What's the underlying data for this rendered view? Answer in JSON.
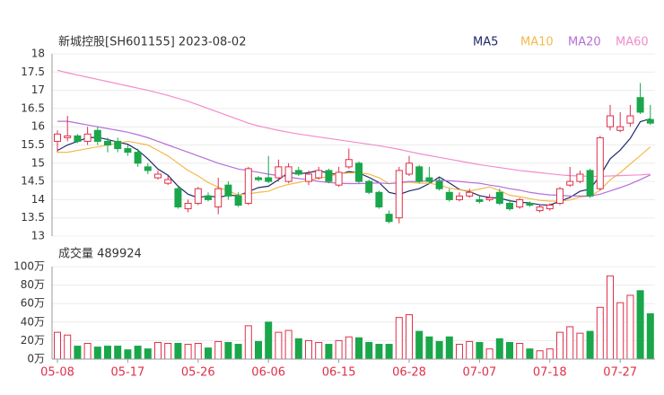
{
  "chart_data": [
    {
      "type": "candlestick",
      "title": "新城控股[SH601155] 2023-08-02",
      "categories": [
        "05-08",
        null,
        null,
        null,
        null,
        null,
        null,
        "05-17",
        null,
        null,
        null,
        null,
        null,
        null,
        "05-26",
        null,
        null,
        null,
        null,
        null,
        null,
        "06-06",
        null,
        null,
        null,
        null,
        null,
        null,
        "06-15",
        null,
        null,
        null,
        null,
        null,
        null,
        "06-28",
        null,
        null,
        null,
        null,
        null,
        null,
        "07-07",
        null,
        null,
        null,
        null,
        null,
        null,
        "07-18",
        null,
        null,
        null,
        null,
        null,
        null,
        "07-27",
        null,
        null,
        null
      ],
      "open": [
        15.6,
        15.7,
        15.75,
        15.6,
        15.9,
        15.6,
        15.6,
        15.4,
        15.3,
        14.9,
        14.6,
        14.45,
        14.3,
        13.75,
        13.9,
        14.1,
        13.8,
        14.4,
        14.1,
        13.9,
        14.6,
        14.6,
        14.6,
        14.5,
        14.8,
        14.5,
        14.6,
        14.8,
        14.4,
        14.9,
        15.0,
        14.5,
        14.2,
        13.6,
        13.5,
        14.7,
        14.9,
        14.6,
        14.5,
        14.2,
        14.0,
        14.1,
        14.0,
        14.0,
        14.2,
        13.9,
        13.8,
        13.9,
        13.7,
        13.75,
        13.9,
        14.4,
        14.5,
        14.8,
        14.3,
        16.0,
        15.9,
        16.1,
        16.8,
        16.2
      ],
      "high": [
        15.9,
        16.3,
        15.8,
        16.0,
        16.0,
        15.7,
        15.7,
        15.5,
        15.4,
        15.0,
        14.8,
        14.65,
        14.4,
        14.0,
        14.35,
        14.2,
        14.6,
        14.5,
        14.2,
        14.9,
        14.65,
        15.2,
        15.1,
        15.0,
        14.9,
        14.8,
        14.9,
        14.85,
        14.9,
        15.4,
        15.05,
        14.55,
        14.25,
        13.7,
        14.9,
        15.2,
        14.95,
        14.9,
        14.6,
        14.3,
        14.2,
        14.3,
        14.1,
        14.15,
        14.3,
        14.0,
        14.05,
        13.95,
        13.85,
        13.9,
        14.35,
        14.9,
        14.8,
        14.85,
        15.75,
        16.6,
        16.4,
        16.6,
        17.2,
        16.6
      ],
      "low": [
        15.3,
        15.6,
        15.55,
        15.5,
        15.5,
        15.3,
        15.3,
        15.2,
        14.9,
        14.7,
        14.55,
        14.4,
        13.75,
        13.65,
        13.85,
        13.95,
        13.6,
        14.0,
        13.8,
        13.85,
        14.5,
        14.45,
        14.5,
        14.45,
        14.65,
        14.4,
        14.55,
        14.45,
        14.35,
        14.85,
        14.45,
        14.15,
        13.75,
        13.35,
        13.35,
        14.65,
        14.45,
        14.45,
        14.25,
        13.95,
        13.95,
        14.05,
        13.9,
        13.95,
        13.85,
        13.7,
        13.75,
        13.8,
        13.65,
        13.7,
        13.85,
        14.35,
        14.45,
        14.05,
        14.25,
        15.9,
        15.85,
        16.0,
        16.35,
        16.05
      ],
      "close": [
        15.8,
        15.75,
        15.6,
        15.8,
        15.6,
        15.5,
        15.4,
        15.3,
        15.0,
        14.8,
        14.7,
        14.55,
        13.8,
        13.9,
        14.3,
        14.0,
        14.3,
        14.1,
        13.85,
        14.85,
        14.55,
        14.5,
        14.9,
        14.9,
        14.7,
        14.7,
        14.8,
        14.5,
        14.75,
        15.1,
        14.5,
        14.2,
        13.8,
        13.4,
        14.8,
        15.0,
        14.5,
        14.5,
        14.3,
        14.0,
        14.1,
        14.2,
        13.95,
        14.05,
        13.9,
        13.75,
        14.0,
        13.85,
        13.8,
        13.85,
        14.3,
        14.5,
        14.7,
        14.1,
        15.7,
        16.3,
        16.0,
        16.3,
        16.4,
        16.1
      ],
      "up_color": "#e0304a",
      "down_color": "#1aa64a",
      "series": [
        {
          "name": "MA5",
          "color": "#1f2a6b",
          "values": [
            15.35,
            15.5,
            15.6,
            15.7,
            15.71,
            15.65,
            15.58,
            15.52,
            15.36,
            15.12,
            14.84,
            14.67,
            14.37,
            14.15,
            14.05,
            14.11,
            14.06,
            14.12,
            14.11,
            14.22,
            14.33,
            14.37,
            14.55,
            14.74,
            14.71,
            14.74,
            14.8,
            14.72,
            14.69,
            14.77,
            14.73,
            14.61,
            14.47,
            14.2,
            14.14,
            14.24,
            14.3,
            14.44,
            14.62,
            14.46,
            14.28,
            14.22,
            14.11,
            14.06,
            14.04,
            13.97,
            13.93,
            13.91,
            13.86,
            13.85,
            13.96,
            14.06,
            14.23,
            14.29,
            14.66,
            15.12,
            15.36,
            15.68,
            16.14,
            16.22
          ]
        },
        {
          "name": "MA10",
          "color": "#f5b84a",
          "values": [
            15.3,
            15.3,
            15.35,
            15.4,
            15.45,
            15.5,
            15.55,
            15.6,
            15.55,
            15.5,
            15.35,
            15.2,
            15.0,
            14.8,
            14.65,
            14.47,
            14.34,
            14.24,
            14.13,
            14.16,
            14.2,
            14.23,
            14.34,
            14.42,
            14.47,
            14.53,
            14.59,
            14.63,
            14.72,
            14.73,
            14.74,
            14.7,
            14.6,
            14.44,
            14.46,
            14.48,
            14.45,
            14.45,
            14.4,
            14.32,
            14.27,
            14.24,
            14.29,
            14.35,
            14.25,
            14.12,
            14.08,
            14.03,
            13.98,
            13.96,
            13.96,
            13.99,
            14.07,
            14.1,
            14.26,
            14.54,
            14.74,
            14.98,
            15.21,
            15.45
          ]
        },
        {
          "name": "MA20",
          "color": "#b56fd8",
          "values": [
            16.15,
            16.15,
            16.1,
            16.05,
            16.0,
            15.95,
            15.9,
            15.85,
            15.78,
            15.7,
            15.6,
            15.5,
            15.4,
            15.3,
            15.2,
            15.1,
            15.0,
            14.92,
            14.84,
            14.8,
            14.75,
            14.7,
            14.66,
            14.62,
            14.58,
            14.55,
            14.5,
            14.47,
            14.45,
            14.44,
            14.44,
            14.45,
            14.46,
            14.44,
            14.47,
            14.5,
            14.5,
            14.52,
            14.53,
            14.52,
            14.5,
            14.47,
            14.45,
            14.4,
            14.36,
            14.3,
            14.26,
            14.2,
            14.16,
            14.13,
            14.12,
            14.1,
            14.1,
            14.1,
            14.15,
            14.24,
            14.33,
            14.43,
            14.55,
            14.68
          ]
        },
        {
          "name": "MA60",
          "color": "#f28ccb",
          "values": [
            17.55,
            17.48,
            17.42,
            17.36,
            17.3,
            17.24,
            17.18,
            17.12,
            17.06,
            17.0,
            16.93,
            16.86,
            16.78,
            16.7,
            16.6,
            16.5,
            16.4,
            16.3,
            16.2,
            16.1,
            16.02,
            15.96,
            15.9,
            15.85,
            15.8,
            15.76,
            15.72,
            15.68,
            15.64,
            15.6,
            15.56,
            15.52,
            15.48,
            15.43,
            15.38,
            15.32,
            15.26,
            15.21,
            15.16,
            15.11,
            15.06,
            15.01,
            14.96,
            14.92,
            14.88,
            14.84,
            14.8,
            14.77,
            14.74,
            14.71,
            14.68,
            14.66,
            14.65,
            14.64,
            14.64,
            14.65,
            14.66,
            14.67,
            14.68,
            14.7
          ]
        }
      ],
      "ylim": [
        13,
        18
      ],
      "yticks": [
        13,
        13.5,
        14,
        14.5,
        15,
        15.5,
        16,
        16.5,
        17,
        17.5,
        18
      ],
      "grid": true,
      "legend": "top-right"
    },
    {
      "type": "bar",
      "title": "成交量 489924",
      "values": [
        29,
        26,
        14,
        17,
        13,
        14,
        14,
        10,
        14,
        11,
        18,
        17,
        17,
        16,
        17,
        12,
        19,
        18,
        16,
        36,
        19,
        40,
        29,
        31,
        22,
        20,
        18,
        16,
        20,
        24,
        23,
        18,
        16,
        16,
        45,
        48,
        30,
        24,
        19,
        24,
        16,
        19,
        18,
        11,
        22,
        18,
        17,
        11,
        9,
        11,
        29,
        35,
        28,
        30,
        56,
        90,
        61,
        69,
        74,
        49
      ],
      "ylim": [
        0,
        100
      ],
      "yticks": [
        {
          "value": 0,
          "label": "0万"
        },
        {
          "value": 20,
          "label": "20万"
        },
        {
          "value": 40,
          "label": "40万"
        },
        {
          "value": 60,
          "label": "60万"
        },
        {
          "value": 80,
          "label": "80万"
        },
        {
          "value": 100,
          "label": "100万"
        }
      ],
      "grid": true
    }
  ]
}
